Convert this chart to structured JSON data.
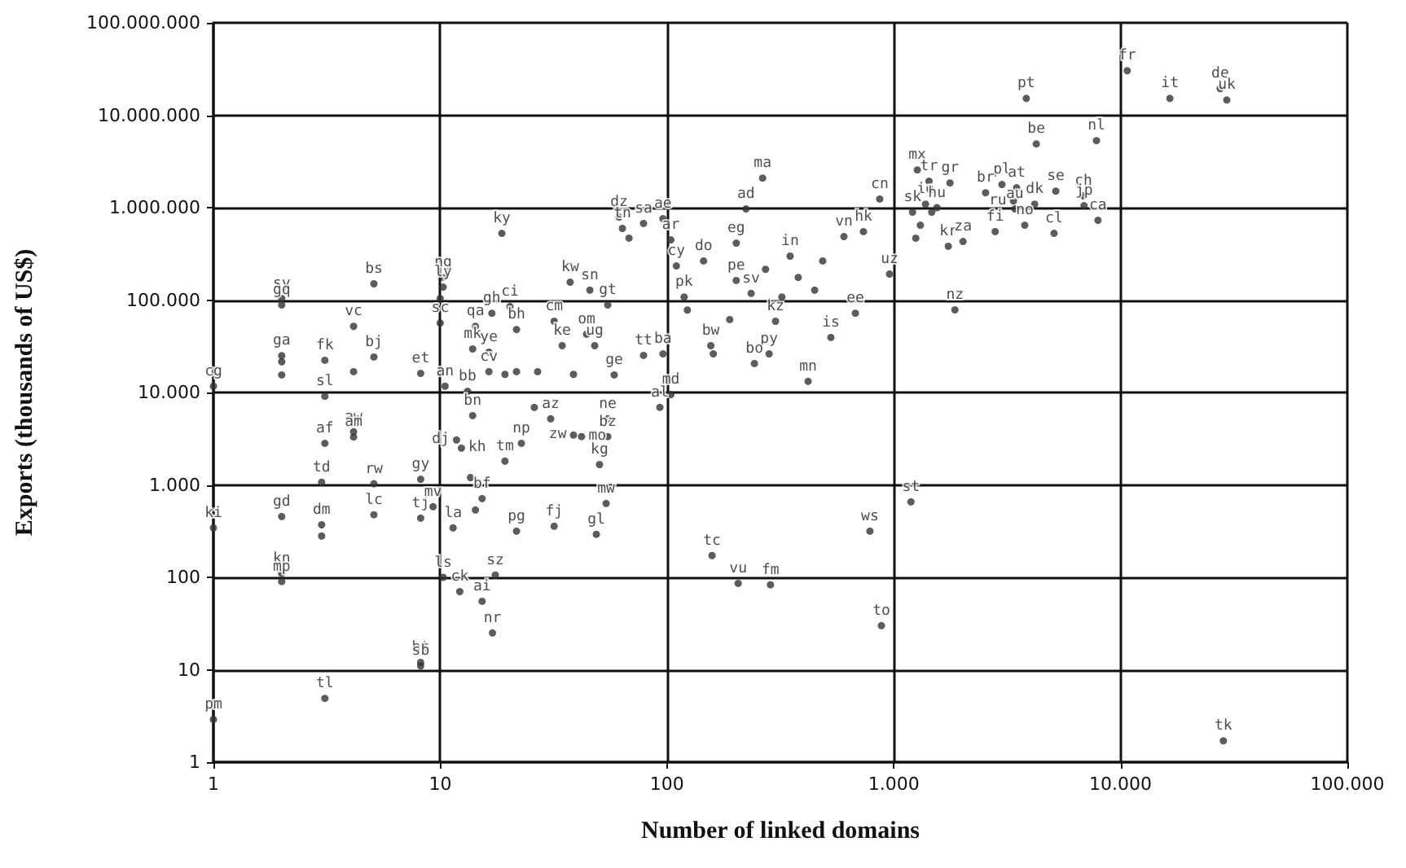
{
  "chart_data": {
    "type": "scatter",
    "xlabel": "Number of linked domains",
    "ylabel": "Exports (thousands of US$)",
    "log": "xy",
    "grid": true,
    "marker": "circle",
    "xlim": [
      1,
      100000
    ],
    "ylim": [
      1,
      100000000
    ],
    "xticks": [
      1,
      10,
      100,
      {
        "value": 1000,
        "label": "1.000"
      },
      {
        "value": 10000,
        "label": "10.000"
      },
      {
        "value": 100000,
        "label": "100.000"
      }
    ],
    "yticks": [
      1,
      10,
      100,
      {
        "value": 1000,
        "label": "1.000"
      },
      {
        "value": 10000,
        "label": "10.000"
      },
      {
        "value": 100000,
        "label": "100.000"
      },
      {
        "value": 1000000,
        "label": "1.000.000"
      },
      {
        "value": 10000000,
        "label": "10.000.000"
      },
      {
        "value": 100000000,
        "label": "100.000.000"
      }
    ],
    "series": [
      {
        "color": "#333333",
        "x": [
          1,
          3.1,
          8.2,
          8.2,
          17,
          2,
          2,
          1,
          2,
          3,
          3,
          3,
          5.1,
          8.2,
          8.2,
          9.3,
          11.4,
          10.3,
          12.2,
          15.3,
          17.5,
          21.7,
          31.8,
          48.8,
          53.9,
          13.6,
          15.3,
          14.3,
          2,
          2,
          5.1,
          4.15,
          3.1,
          5.1,
          4.15,
          2,
          2,
          2,
          3.1,
          1,
          8.2,
          3.1,
          4.15,
          4.15,
          5.1,
          10.3,
          10.3,
          10,
          10,
          18.7,
          20.3,
          16.9,
          14.3,
          21.7,
          31.8,
          37.4,
          45.7,
          54.8,
          44.2,
          34.5,
          48,
          13.9,
          16.4,
          19.3,
          21.7,
          26.9,
          38.7,
          58.5,
          78.8,
          96,
          104,
          93,
          16.4,
          10.5,
          13.2,
          26,
          30.7,
          13.9,
          11.8,
          12.4,
          22.8,
          19.3,
          54.8,
          38.7,
          42,
          54.8,
          50.4,
          61.5,
          63.6,
          78.8,
          96,
          104,
          68,
          223,
          264,
          202,
          145,
          867,
          1270,
          1430,
          1770,
          1380,
          1550,
          3000,
          3480,
          2540,
          3370,
          4180,
          5180,
          3420,
          2800,
          3780,
          5090,
          7830,
          6860,
          6900,
          7950,
          4250,
          3840,
          10700,
          16500,
          27500,
          29400,
          28400,
          1190,
          785,
          882,
          158,
          206,
          286,
          1860,
          419,
          528,
          677,
          958,
          301,
          282,
          243,
          156,
          160,
          235,
          189,
          202,
          349,
          735,
          603,
          1210,
          1310,
          1470,
          1250,
          1740,
          2020,
          110,
          119,
          123,
          272,
          379,
          486,
          448,
          321
        ],
        "values": [
          2.9,
          4.9,
          12,
          11,
          25,
          110,
          90,
          343,
          455,
          1070,
          370,
          280,
          475,
          437,
          1150,
          580,
          343,
          100,
          70,
          55,
          106,
          316,
          357,
          292,
          630,
          1200,
          711,
          535,
          104000,
          88500,
          150000,
          52000,
          22300,
          24200,
          16800,
          25000,
          21500,
          15500,
          9100,
          11700,
          16100,
          2820,
          3750,
          3300,
          1030,
          176000,
          138000,
          104000,
          56500,
          527000,
          85000,
          72000,
          52000,
          48000,
          59000,
          156000,
          128000,
          88500,
          42700,
          32100,
          32100,
          29600,
          27300,
          15700,
          16800,
          16800,
          15700,
          15500,
          25200,
          26200,
          9500,
          6900,
          16800,
          11700,
          10300,
          6900,
          5190,
          5620,
          3060,
          2500,
          2820,
          1810,
          5190,
          3460,
          3330,
          3330,
          1660,
          790000,
          596000,
          674000,
          760000,
          448000,
          468000,
          968000,
          2090000,
          413000,
          265000,
          1240000,
          2560000,
          1930000,
          1850000,
          1090000,
          1000000,
          1780000,
          1640000,
          1450000,
          1180000,
          1090000,
          1510000,
          968000,
          550000,
          645000,
          527000,
          5310000,
          1340000,
          1050000,
          729000,
          4900000,
          15200000,
          30300000,
          15200000,
          19400000,
          14600000,
          1.7,
          656,
          316,
          30,
          172,
          86,
          83,
          78400,
          13200,
          39400,
          72000,
          191000,
          59000,
          26200,
          20600,
          32100,
          26200,
          118000,
          61500,
          163000,
          299000,
          550000,
          486000,
          894000,
          645000,
          894000,
          468000,
          382000,
          430000,
          234000,
          108000,
          78000,
          215000,
          176000,
          265000,
          128000,
          108000
        ],
        "value_labels": [
          "pm",
          "tl",
          "bt",
          "sb",
          "nr",
          "kn",
          "mp",
          "ki",
          "gd",
          "td",
          "dm",
          null,
          "lc",
          "tj",
          "gy",
          "mv",
          "la",
          "ls",
          "ck",
          "ai",
          "sz",
          "pg",
          "fj",
          "gl",
          "mw",
          null,
          "bf",
          null,
          "sy",
          "gq",
          "bs",
          "vc",
          "fk",
          "bj",
          null,
          "ga",
          null,
          null,
          "sl",
          "cg",
          "et",
          "af",
          "aw",
          "am",
          "rw",
          "ng",
          "ly",
          null,
          "sc",
          "ky",
          "ci",
          "gh",
          "qa",
          "bh",
          "cm",
          "kw",
          "sn",
          "gt",
          "om",
          "ke",
          "ug",
          "mk",
          "ye",
          null,
          null,
          null,
          null,
          "ge",
          "tt",
          "ba",
          "md",
          "al",
          "cv",
          "an",
          "bb",
          null,
          "az",
          "bn",
          "dj",
          "kh",
          "np",
          "tm",
          "ne",
          "zw",
          "mo",
          "bz",
          "kg",
          "dz",
          "tn",
          "sa",
          "ae",
          "ar",
          null,
          "ad",
          "ma",
          "eg",
          "do",
          "cn",
          "mx",
          "tr",
          "gr",
          "ie",
          "hu",
          "pl",
          "at",
          "br",
          "ru",
          "dk",
          "se",
          "au",
          "fi",
          "no",
          "cl",
          "nl",
          "ch",
          "jp",
          "ca",
          "be",
          "pt",
          "fr",
          "it",
          "de",
          "uk",
          "tk",
          "st",
          "ws",
          "to",
          "tc",
          "vu",
          "fm",
          "nz",
          "mn",
          "is",
          "ee",
          "uz",
          "kz",
          "py",
          "bo",
          "bw",
          null,
          "sv",
          null,
          "pe",
          "in",
          "hk",
          "vn",
          "sk",
          null,
          null,
          null,
          "kr",
          "za",
          "cy",
          "pk",
          null,
          null,
          null,
          null,
          null,
          null
        ]
      }
    ]
  }
}
